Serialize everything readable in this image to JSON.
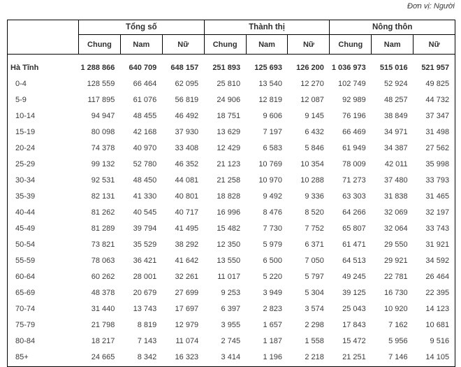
{
  "unit_note": "Đơn vị: Người",
  "colors": {
    "border": "#000000",
    "text": "#3a3a3a"
  },
  "table": {
    "col_groups": [
      {
        "label": "Tổng số"
      },
      {
        "label": "Thành thị"
      },
      {
        "label": "Nông thôn"
      }
    ],
    "sub_headers": [
      "Chung",
      "Nam",
      "Nữ",
      "Chung",
      "Nam",
      "Nữ",
      "Chung",
      "Nam",
      "Nữ"
    ],
    "rows": [
      {
        "label": "Hà Tĩnh",
        "bold": true,
        "values": [
          "1 288 866",
          "640 709",
          "648 157",
          "251 893",
          "125 693",
          "126 200",
          "1 036 973",
          "515 016",
          "521 957"
        ]
      },
      {
        "label": "0-4",
        "bold": false,
        "values": [
          "128 559",
          "66 464",
          "62 095",
          "25 810",
          "13 540",
          "12 270",
          "102 749",
          "52 924",
          "49 825"
        ]
      },
      {
        "label": "5-9",
        "bold": false,
        "values": [
          "117 895",
          "61 076",
          "56 819",
          "24 906",
          "12 819",
          "12 087",
          "92 989",
          "48 257",
          "44 732"
        ]
      },
      {
        "label": "10-14",
        "bold": false,
        "values": [
          "94 947",
          "48 455",
          "46 492",
          "18 751",
          "9 606",
          "9 145",
          "76 196",
          "38 849",
          "37 347"
        ]
      },
      {
        "label": "15-19",
        "bold": false,
        "values": [
          "80 098",
          "42 168",
          "37 930",
          "13 629",
          "7 197",
          "6 432",
          "66 469",
          "34 971",
          "31 498"
        ]
      },
      {
        "label": "20-24",
        "bold": false,
        "values": [
          "74 378",
          "40 970",
          "33 408",
          "12 429",
          "6 583",
          "5 846",
          "61 949",
          "34 387",
          "27 562"
        ]
      },
      {
        "label": "25-29",
        "bold": false,
        "values": [
          "99 132",
          "52 780",
          "46 352",
          "21 123",
          "10 769",
          "10 354",
          "78 009",
          "42 011",
          "35 998"
        ]
      },
      {
        "label": "30-34",
        "bold": false,
        "values": [
          "92 531",
          "48 450",
          "44 081",
          "21 258",
          "10 970",
          "10 288",
          "71 273",
          "37 480",
          "33 793"
        ]
      },
      {
        "label": "35-39",
        "bold": false,
        "values": [
          "82 131",
          "41 330",
          "40 801",
          "18 828",
          "9 492",
          "9 336",
          "63 303",
          "31 838",
          "31 465"
        ]
      },
      {
        "label": "40-44",
        "bold": false,
        "values": [
          "81 262",
          "40 545",
          "40 717",
          "16 996",
          "8 476",
          "8 520",
          "64 266",
          "32 069",
          "32 197"
        ]
      },
      {
        "label": "45-49",
        "bold": false,
        "values": [
          "81 289",
          "39 794",
          "41 495",
          "15 482",
          "7 730",
          "7 752",
          "65 807",
          "32 064",
          "33 743"
        ]
      },
      {
        "label": "50-54",
        "bold": false,
        "values": [
          "73 821",
          "35 529",
          "38 292",
          "12 350",
          "5 979",
          "6 371",
          "61 471",
          "29 550",
          "31 921"
        ]
      },
      {
        "label": "55-59",
        "bold": false,
        "values": [
          "78 063",
          "36 421",
          "41 642",
          "13 550",
          "6 500",
          "7 050",
          "64 513",
          "29 921",
          "34 592"
        ]
      },
      {
        "label": "60-64",
        "bold": false,
        "values": [
          "60 262",
          "28 001",
          "32 261",
          "11 017",
          "5 220",
          "5 797",
          "49 245",
          "22 781",
          "26 464"
        ]
      },
      {
        "label": "65-69",
        "bold": false,
        "values": [
          "48 378",
          "20 679",
          "27 699",
          "9 253",
          "3 949",
          "5 304",
          "39 125",
          "16 730",
          "22 395"
        ]
      },
      {
        "label": "70-74",
        "bold": false,
        "values": [
          "31 440",
          "13 743",
          "17 697",
          "6 397",
          "2 823",
          "3 574",
          "25 043",
          "10 920",
          "14 123"
        ]
      },
      {
        "label": "75-79",
        "bold": false,
        "values": [
          "21 798",
          "8 819",
          "12 979",
          "3 955",
          "1 657",
          "2 298",
          "17 843",
          "7 162",
          "10 681"
        ]
      },
      {
        "label": "80-84",
        "bold": false,
        "values": [
          "18 217",
          "7 143",
          "11 074",
          "2 745",
          "1 187",
          "1 558",
          "15 472",
          "5 956",
          "9 516"
        ]
      },
      {
        "label": "85+",
        "bold": false,
        "values": [
          "24 665",
          "8 342",
          "16 323",
          "3 414",
          "1 196",
          "2 218",
          "21 251",
          "7 146",
          "14 105"
        ]
      }
    ]
  }
}
